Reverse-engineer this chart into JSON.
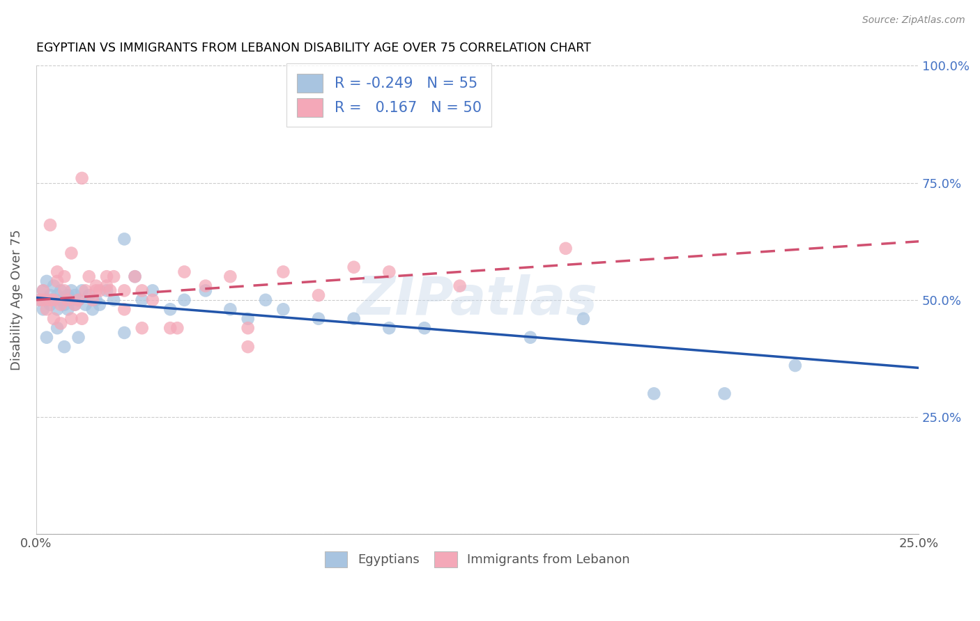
{
  "title": "EGYPTIAN VS IMMIGRANTS FROM LEBANON DISABILITY AGE OVER 75 CORRELATION CHART",
  "source": "Source: ZipAtlas.com",
  "ylabel": "Disability Age Over 75",
  "xlim": [
    0.0,
    0.25
  ],
  "ylim": [
    0.0,
    1.0
  ],
  "xtick_positions": [
    0.0,
    0.05,
    0.1,
    0.15,
    0.2,
    0.25
  ],
  "xtick_labels": [
    "0.0%",
    "",
    "",
    "",
    "",
    "25.0%"
  ],
  "ytick_positions": [
    0.0,
    0.25,
    0.5,
    0.75,
    1.0
  ],
  "right_ytick_labels": [
    "",
    "25.0%",
    "50.0%",
    "75.0%",
    "100.0%"
  ],
  "egyptians_color": "#a8c4e0",
  "lebanon_color": "#f4a8b8",
  "egyptians_line_color": "#2255aa",
  "lebanon_line_color": "#d05070",
  "legend_R_egyptian": "-0.249",
  "legend_N_egyptian": "55",
  "legend_R_lebanon": "0.167",
  "legend_N_lebanon": "50",
  "watermark": "ZIPatlas",
  "egyptians_x": [
    0.001,
    0.002,
    0.002,
    0.003,
    0.003,
    0.004,
    0.004,
    0.005,
    0.005,
    0.006,
    0.006,
    0.007,
    0.007,
    0.008,
    0.008,
    0.009,
    0.009,
    0.01,
    0.01,
    0.011,
    0.011,
    0.012,
    0.013,
    0.014,
    0.015,
    0.016,
    0.017,
    0.018,
    0.02,
    0.022,
    0.025,
    0.028,
    0.03,
    0.033,
    0.038,
    0.042,
    0.048,
    0.055,
    0.06,
    0.065,
    0.07,
    0.08,
    0.09,
    0.1,
    0.11,
    0.14,
    0.155,
    0.175,
    0.195,
    0.215,
    0.003,
    0.006,
    0.008,
    0.012,
    0.025
  ],
  "egyptians_y": [
    0.5,
    0.52,
    0.48,
    0.5,
    0.54,
    0.49,
    0.51,
    0.5,
    0.53,
    0.48,
    0.51,
    0.5,
    0.52,
    0.49,
    0.5,
    0.48,
    0.51,
    0.5,
    0.52,
    0.49,
    0.51,
    0.5,
    0.52,
    0.49,
    0.51,
    0.48,
    0.5,
    0.49,
    0.52,
    0.5,
    0.63,
    0.55,
    0.5,
    0.52,
    0.48,
    0.5,
    0.52,
    0.48,
    0.46,
    0.5,
    0.48,
    0.46,
    0.46,
    0.44,
    0.44,
    0.42,
    0.46,
    0.3,
    0.3,
    0.36,
    0.42,
    0.44,
    0.4,
    0.42,
    0.43
  ],
  "lebanon_x": [
    0.001,
    0.002,
    0.003,
    0.004,
    0.005,
    0.005,
    0.006,
    0.006,
    0.007,
    0.008,
    0.008,
    0.009,
    0.01,
    0.011,
    0.012,
    0.013,
    0.014,
    0.015,
    0.016,
    0.017,
    0.018,
    0.02,
    0.022,
    0.025,
    0.028,
    0.03,
    0.033,
    0.038,
    0.042,
    0.048,
    0.055,
    0.06,
    0.07,
    0.08,
    0.09,
    0.1,
    0.12,
    0.15,
    0.013,
    0.017,
    0.021,
    0.025,
    0.03,
    0.04,
    0.06,
    0.002,
    0.004,
    0.007,
    0.01,
    0.02
  ],
  "lebanon_y": [
    0.5,
    0.52,
    0.48,
    0.66,
    0.46,
    0.5,
    0.54,
    0.56,
    0.49,
    0.52,
    0.55,
    0.5,
    0.6,
    0.49,
    0.5,
    0.76,
    0.52,
    0.55,
    0.5,
    0.52,
    0.52,
    0.53,
    0.55,
    0.52,
    0.55,
    0.52,
    0.5,
    0.44,
    0.56,
    0.53,
    0.55,
    0.44,
    0.56,
    0.51,
    0.57,
    0.56,
    0.53,
    0.61,
    0.46,
    0.53,
    0.52,
    0.48,
    0.44,
    0.44,
    0.4,
    0.5,
    0.5,
    0.45,
    0.46,
    0.55
  ],
  "eg_line_x0": 0.0,
  "eg_line_x1": 0.25,
  "eg_line_y0": 0.505,
  "eg_line_y1": 0.355,
  "lb_line_x0": 0.0,
  "lb_line_x1": 0.25,
  "lb_line_y0": 0.5,
  "lb_line_y1": 0.625
}
